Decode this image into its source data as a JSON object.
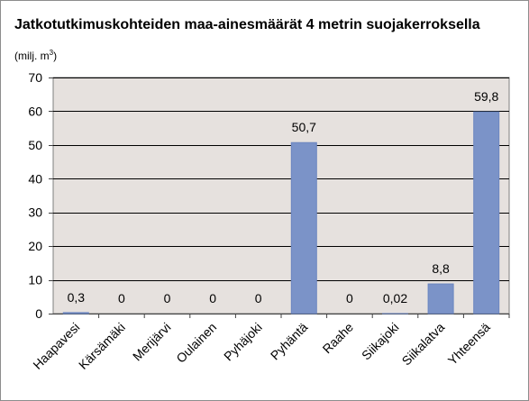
{
  "chart_data": {
    "type": "bar",
    "title": "Jatkotutkimuskohteiden maa-ainesmäärät 4 metrin suojakerroksella",
    "ylabel": "(milj. m³)",
    "ylabel_main": "(milj. m",
    "ylabel_sup": "3",
    "ylabel_end": ")",
    "xlabel": "",
    "categories": [
      "Haapavesi",
      "Kärsämäki",
      "Merijärvi",
      "Oulainen",
      "Pyhäjoki",
      "Pyhäntä",
      "Raahe",
      "Siikajoki",
      "Siikalatva",
      "Yhteensä"
    ],
    "values": [
      0.3,
      0,
      0,
      0,
      0,
      50.7,
      0,
      0.02,
      8.8,
      59.8
    ],
    "data_labels": [
      "0,3",
      "0",
      "0",
      "0",
      "0",
      "50,7",
      "0",
      "0,02",
      "8,8",
      "59,8"
    ],
    "ylim": [
      0,
      70
    ],
    "yticks": [
      0,
      10,
      20,
      30,
      40,
      50,
      60,
      70
    ],
    "ytick_labels": [
      "0",
      "10",
      "20",
      "30",
      "40",
      "50",
      "60",
      "70"
    ],
    "grid": "horizontal",
    "legend": "none",
    "colors": {
      "bar": "#7b93c8",
      "bar_edge": "#6c86c0",
      "plot_background": "#e6e1de",
      "gridline": "#000000",
      "frame": "#7f7f7f"
    }
  }
}
